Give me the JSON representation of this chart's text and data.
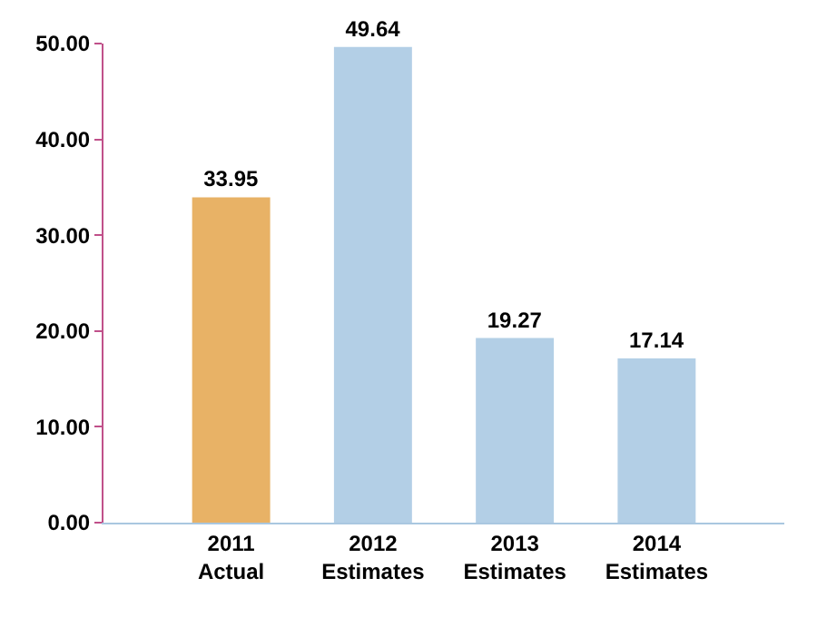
{
  "chart_data": {
    "type": "bar",
    "categories": [
      "2011\nActual",
      "2012\nEstimates",
      "2013\nEstimates",
      "2014\nEstimates"
    ],
    "values": [
      33.95,
      49.64,
      19.27,
      17.14
    ],
    "colors": [
      "#e8b266",
      "#b3cfe6",
      "#b3cfe6",
      "#b3cfe6"
    ],
    "data_labels": true,
    "ylim": [
      0,
      50
    ],
    "yticks": [
      {
        "value": 0,
        "label": "0.00"
      },
      {
        "value": 10,
        "label": "10.00"
      },
      {
        "value": 20,
        "label": "20.00"
      },
      {
        "value": 30,
        "label": "30.00"
      },
      {
        "value": 40,
        "label": "40.00"
      },
      {
        "value": 50,
        "label": "50.00"
      }
    ],
    "legend": false
  }
}
